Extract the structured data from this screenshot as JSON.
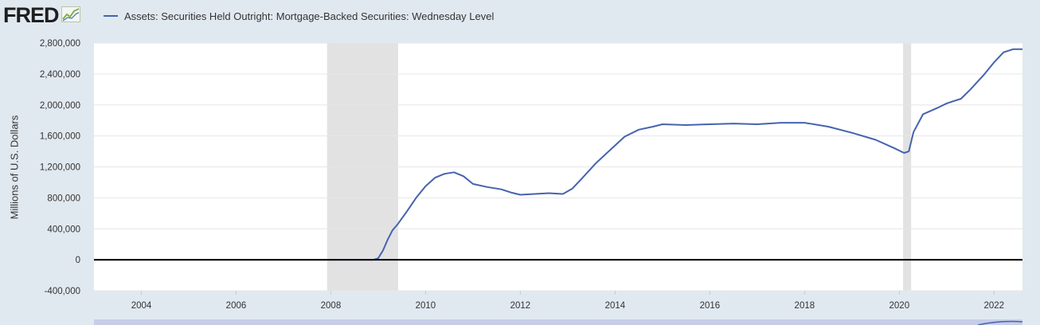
{
  "header": {
    "logo_text": "FRED",
    "logo_graph_icon": "line-graph-icon",
    "legend_label": "Assets: Securities Held Outright: Mortgage-Backed Securities: Wednesday Level"
  },
  "colors": {
    "series": "#4563ae",
    "background": "#e1e9f0",
    "plot_bg": "#ffffff",
    "recession": "#e2e2e2",
    "zero_line": "#000000",
    "navigator": "#c6cde8"
  },
  "chart_data": {
    "type": "line",
    "title": "",
    "xlabel": "",
    "ylabel": "Millions of U.S. Dollars",
    "xlim": [
      2003.0,
      2022.6
    ],
    "ylim": [
      -400000,
      2800000
    ],
    "x_ticks": [
      2004,
      2006,
      2008,
      2010,
      2012,
      2014,
      2016,
      2018,
      2020,
      2022
    ],
    "x_tick_labels": [
      "2004",
      "2006",
      "2008",
      "2010",
      "2012",
      "2014",
      "2016",
      "2018",
      "2020",
      "2022"
    ],
    "y_ticks": [
      -400000,
      0,
      400000,
      800000,
      1200000,
      1600000,
      2000000,
      2400000,
      2800000
    ],
    "y_tick_labels": [
      "-400,000",
      "0",
      "400,000",
      "800,000",
      "1,200,000",
      "1,600,000",
      "2,000,000",
      "2,400,000",
      "2,800,000"
    ],
    "grid": "horizontal",
    "legend": "top-left",
    "recessions": [
      [
        2007.92,
        2009.42
      ],
      [
        2020.08,
        2020.25
      ]
    ],
    "series": [
      {
        "name": "Assets: Securities Held Outright: Mortgage-Backed Securities: Wednesday Level",
        "x": [
          2003.0,
          2008.9,
          2009.0,
          2009.1,
          2009.2,
          2009.3,
          2009.4,
          2009.6,
          2009.8,
          2010.0,
          2010.2,
          2010.4,
          2010.6,
          2010.8,
          2011.0,
          2011.3,
          2011.6,
          2011.8,
          2012.0,
          2012.3,
          2012.6,
          2012.9,
          2013.1,
          2013.3,
          2013.6,
          2013.9,
          2014.2,
          2014.5,
          2014.8,
          2015.0,
          2015.5,
          2016.0,
          2016.5,
          2017.0,
          2017.5,
          2018.0,
          2018.5,
          2019.0,
          2019.5,
          2019.9,
          2020.1,
          2020.2,
          2020.3,
          2020.5,
          2020.8,
          2021.0,
          2021.3,
          2021.5,
          2021.8,
          2022.0,
          2022.2,
          2022.4,
          2022.6
        ],
        "y": [
          0,
          0,
          20000,
          120000,
          260000,
          380000,
          450000,
          620000,
          800000,
          950000,
          1060000,
          1110000,
          1130000,
          1080000,
          980000,
          940000,
          910000,
          870000,
          840000,
          850000,
          860000,
          850000,
          920000,
          1050000,
          1250000,
          1420000,
          1590000,
          1680000,
          1720000,
          1750000,
          1740000,
          1750000,
          1760000,
          1750000,
          1770000,
          1770000,
          1720000,
          1640000,
          1550000,
          1440000,
          1380000,
          1400000,
          1650000,
          1880000,
          1960000,
          2020000,
          2080000,
          2200000,
          2400000,
          2550000,
          2680000,
          2720000,
          2720000
        ]
      }
    ]
  }
}
